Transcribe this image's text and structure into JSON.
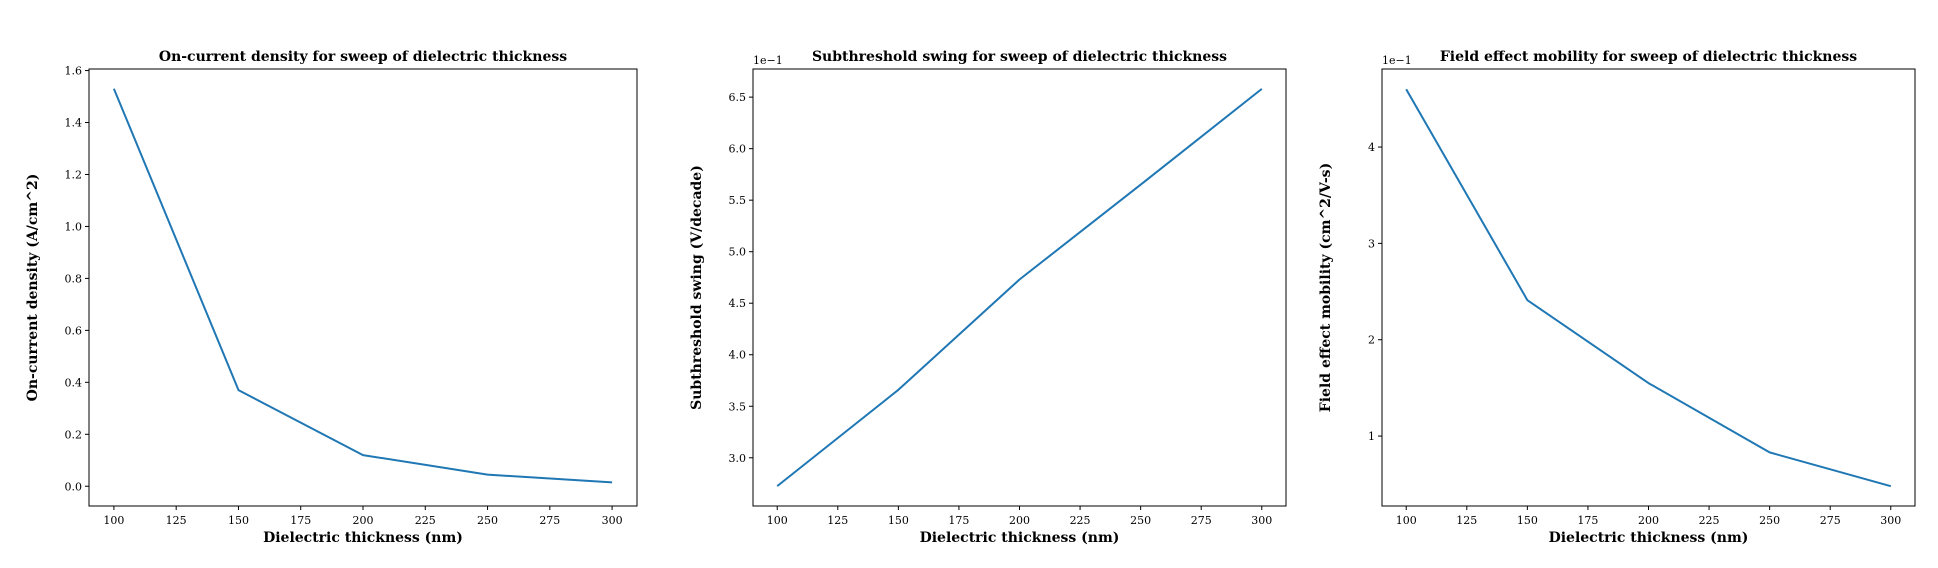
{
  "chart_data": [
    {
      "type": "line",
      "title": "On-current density for sweep of dielectric thickness",
      "xlabel": "Dielectric thickness (nm)",
      "ylabel": "On-current density (A/cm^2)",
      "x": [
        100,
        150,
        200,
        250,
        300
      ],
      "series": [
        {
          "values": [
            1.53,
            0.37,
            0.12,
            0.045,
            0.015
          ]
        }
      ],
      "xlim": [
        90,
        310
      ],
      "ylim": [
        -0.076,
        1.606
      ],
      "xticks": [
        100,
        125,
        150,
        175,
        200,
        225,
        250,
        275,
        300
      ],
      "xtick_labels": [
        "100",
        "125",
        "150",
        "175",
        "200",
        "225",
        "250",
        "275",
        "300"
      ],
      "yticks": [
        0.0,
        0.2,
        0.4,
        0.6,
        0.8,
        1.0,
        1.2,
        1.4,
        1.6
      ],
      "ytick_labels": [
        "0.0",
        "0.2",
        "0.4",
        "0.6",
        "0.8",
        "1.0",
        "1.2",
        "1.4",
        "1.6"
      ],
      "offset_text": "",
      "grid": false,
      "color": "#1f77b4"
    },
    {
      "type": "line",
      "title": "Subthreshold swing for sweep of dielectric thickness",
      "xlabel": "Dielectric thickness (nm)",
      "ylabel": "Subthreshold swing (V/decade)",
      "x": [
        100,
        150,
        200,
        250,
        300
      ],
      "series": [
        {
          "values": [
            0.2725,
            0.366,
            0.473,
            0.565,
            0.658
          ]
        }
      ],
      "xlim": [
        90,
        310
      ],
      "ylim": [
        0.2532,
        0.6773
      ],
      "xticks": [
        100,
        125,
        150,
        175,
        200,
        225,
        250,
        275,
        300
      ],
      "xtick_labels": [
        "100",
        "125",
        "150",
        "175",
        "200",
        "225",
        "250",
        "275",
        "300"
      ],
      "yticks": [
        0.3,
        0.35,
        0.4,
        0.45,
        0.5,
        0.55,
        0.6,
        0.65
      ],
      "ytick_labels": [
        "3.0",
        "3.5",
        "4.0",
        "4.5",
        "5.0",
        "5.5",
        "6.0",
        "6.5"
      ],
      "offset_text": "1e−1",
      "grid": false,
      "color": "#1f77b4"
    },
    {
      "type": "line",
      "title": "Field effect mobility for sweep of dielectric thickness",
      "xlabel": "Dielectric thickness (nm)",
      "ylabel": "Field effect mobility (cm^2/V-s)",
      "x": [
        100,
        150,
        200,
        250,
        300
      ],
      "series": [
        {
          "values": [
            0.46,
            0.241,
            0.155,
            0.083,
            0.048
          ]
        }
      ],
      "xlim": [
        90,
        310
      ],
      "ylim": [
        0.0274,
        0.481
      ],
      "xticks": [
        100,
        125,
        150,
        175,
        200,
        225,
        250,
        275,
        300
      ],
      "xtick_labels": [
        "100",
        "125",
        "150",
        "175",
        "200",
        "225",
        "250",
        "275",
        "300"
      ],
      "yticks": [
        0.1,
        0.2,
        0.3,
        0.4
      ],
      "ytick_labels": [
        "1",
        "2",
        "3",
        "4"
      ],
      "offset_text": "1e−1",
      "grid": false,
      "color": "#1f77b4"
    }
  ]
}
